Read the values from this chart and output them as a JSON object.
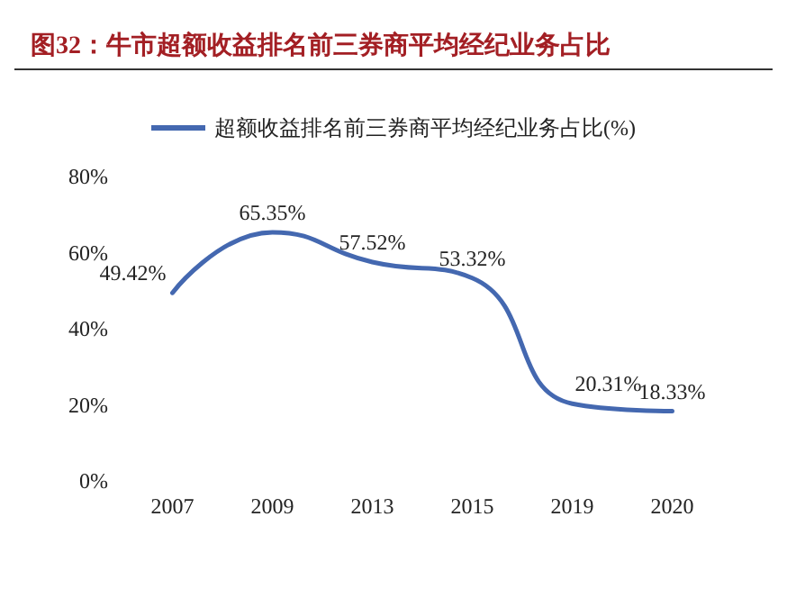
{
  "chart_data": {
    "type": "line",
    "title": "图32：牛市超额收益排名前三券商平均经纪业务占比",
    "categories": [
      "2007",
      "2009",
      "2013",
      "2015",
      "2019",
      "2020"
    ],
    "series": [
      {
        "name": "超额收益排名前三券商平均经纪业务占比(%)",
        "color": "#4468b0",
        "values": [
          49.42,
          65.35,
          57.52,
          53.32,
          20.31,
          18.33
        ],
        "value_labels": [
          "49.42%",
          "65.35%",
          "57.52%",
          "53.32%",
          "20.31%",
          "18.33%"
        ]
      }
    ],
    "ylim": [
      0,
      80
    ],
    "yticks": [
      {
        "value": 0,
        "label": "0%"
      },
      {
        "value": 20,
        "label": "20%"
      },
      {
        "value": 40,
        "label": "40%"
      },
      {
        "value": 60,
        "label": "60%"
      },
      {
        "value": 80,
        "label": "80%"
      }
    ],
    "grid": false,
    "legend": "top",
    "marker": "none",
    "line_style": "solid"
  }
}
